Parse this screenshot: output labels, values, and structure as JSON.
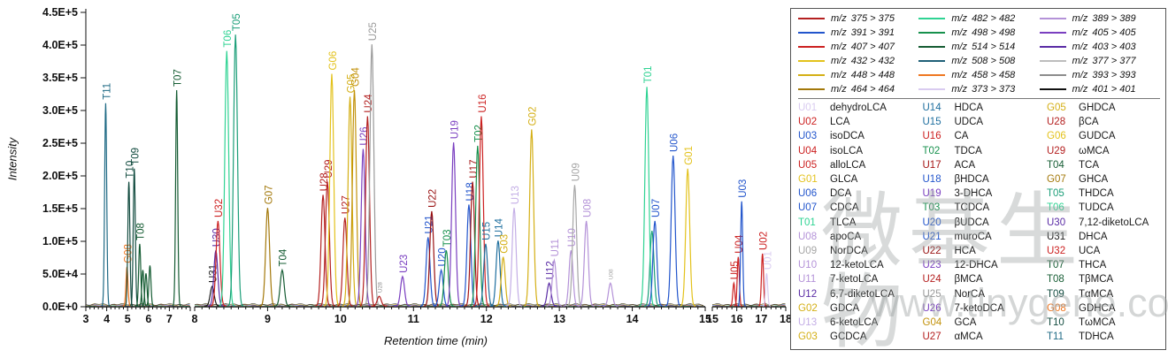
{
  "watermark": {
    "line1": "微基生物",
    "line2": "www.tinygene.com"
  },
  "chart_data": {
    "type": "line",
    "title": "",
    "xlabel": "Retention time (min)",
    "ylabel": "Intensity",
    "y_ticks": [
      "0.0E+0",
      "5.0E+4",
      "1.0E+5",
      "1.5E+5",
      "2.0E+5",
      "2.5E+5",
      "3.0E+5",
      "3.5E+5",
      "4.0E+5",
      "4.5E+5"
    ],
    "y_max_e5": 4.5,
    "x_segments": [
      {
        "start": 3,
        "end": 8,
        "ticks": [
          3,
          4,
          5,
          6,
          7
        ],
        "minor_step": 0.2
      },
      {
        "start": 8,
        "end": 15,
        "ticks": [
          8,
          9,
          10,
          11,
          12,
          13,
          14,
          15
        ],
        "minor_step": 0.1
      },
      {
        "start": 15,
        "end": 18,
        "ticks": [
          15,
          16,
          17,
          18
        ],
        "minor_step": 0.2
      }
    ],
    "peaks": [
      {
        "label": "T11",
        "rt": 3.95,
        "intensity_e5": 3.1,
        "color": "#1f6a85"
      },
      {
        "label": "G08",
        "rt": 4.97,
        "intensity_e5": 0.6,
        "color": "#ee7722"
      },
      {
        "label": "T10",
        "rt": 5.06,
        "intensity_e5": 1.9,
        "color": "#134c40"
      },
      {
        "label": "T09",
        "rt": 5.32,
        "intensity_e5": 2.1,
        "color": "#134c40"
      },
      {
        "label": "T08",
        "rt": 5.58,
        "intensity_e5": 0.95,
        "color": "#155c33"
      },
      {
        "label": "T07",
        "rt": 7.35,
        "intensity_e5": 3.3,
        "color": "#155c33"
      },
      {
        "label": "U31",
        "rt": 8.24,
        "intensity_e5": 0.3,
        "color": "#1a1a1a"
      },
      {
        "label": "U30",
        "rt": 8.29,
        "intensity_e5": 0.85,
        "color": "#5a2ca5"
      },
      {
        "label": "U32",
        "rt": 8.32,
        "intensity_e5": 1.3,
        "color": "#cc2020"
      },
      {
        "label": "T06",
        "rt": 8.44,
        "intensity_e5": 3.9,
        "color": "#2fd393"
      },
      {
        "label": "T05",
        "rt": 8.56,
        "intensity_e5": 4.15,
        "color": "#1b9e78"
      },
      {
        "label": "G07",
        "rt": 9.0,
        "intensity_e5": 1.5,
        "color": "#a3780a"
      },
      {
        "label": "T04",
        "rt": 9.2,
        "intensity_e5": 0.55,
        "color": "#155c33"
      },
      {
        "label": "U28",
        "rt": 9.76,
        "intensity_e5": 1.7,
        "color": "#b42020"
      },
      {
        "label": "U29",
        "rt": 9.82,
        "intensity_e5": 1.9,
        "color": "#b42020"
      },
      {
        "label": "G06",
        "rt": 9.88,
        "intensity_e5": 3.55,
        "color": "#e3c21c"
      },
      {
        "label": "U27",
        "rt": 10.06,
        "intensity_e5": 1.35,
        "color": "#b42020"
      },
      {
        "label": "G05",
        "rt": 10.13,
        "intensity_e5": 3.2,
        "color": "#d4af15"
      },
      {
        "label": "G04",
        "rt": 10.19,
        "intensity_e5": 3.3,
        "color": "#c2920c"
      },
      {
        "label": "U26",
        "rt": 10.31,
        "intensity_e5": 2.4,
        "color": "#7a3fc0"
      },
      {
        "label": "U24",
        "rt": 10.37,
        "intensity_e5": 2.9,
        "color": "#b42020"
      },
      {
        "label": "U25",
        "rt": 10.43,
        "intensity_e5": 4.0,
        "color": "#9a9a9a"
      },
      {
        "label": "U23",
        "rt": 10.85,
        "intensity_e5": 0.45,
        "color": "#7a3fc0"
      },
      {
        "label": "U21",
        "rt": 11.2,
        "intensity_e5": 1.05,
        "color": "#2255cc"
      },
      {
        "label": "U22",
        "rt": 11.25,
        "intensity_e5": 1.45,
        "color": "#991111"
      },
      {
        "label": "U20",
        "rt": 11.38,
        "intensity_e5": 0.55,
        "color": "#2255cc"
      },
      {
        "label": "T03",
        "rt": 11.45,
        "intensity_e5": 0.85,
        "color": "#17914d"
      },
      {
        "label": "U19",
        "rt": 11.55,
        "intensity_e5": 2.5,
        "color": "#7a3fc0"
      },
      {
        "label": "U18",
        "rt": 11.76,
        "intensity_e5": 1.55,
        "color": "#2255cc"
      },
      {
        "label": "U17",
        "rt": 11.81,
        "intensity_e5": 1.9,
        "color": "#a51515"
      },
      {
        "label": "T02",
        "rt": 11.88,
        "intensity_e5": 2.45,
        "color": "#17914d"
      },
      {
        "label": "U16",
        "rt": 11.93,
        "intensity_e5": 2.9,
        "color": "#cc2020"
      },
      {
        "label": "U15",
        "rt": 11.99,
        "intensity_e5": 0.95,
        "color": "#1f6f9f"
      },
      {
        "label": "U14",
        "rt": 12.16,
        "intensity_e5": 1.0,
        "color": "#1f6f9f"
      },
      {
        "label": "G03",
        "rt": 12.23,
        "intensity_e5": 0.75,
        "color": "#d4af15"
      },
      {
        "label": "U13",
        "rt": 12.38,
        "intensity_e5": 1.5,
        "color": "#c4aee6"
      },
      {
        "label": "G02",
        "rt": 12.62,
        "intensity_e5": 2.7,
        "color": "#d4af15"
      },
      {
        "label": "U12",
        "rt": 12.86,
        "intensity_e5": 0.35,
        "color": "#5a2ca5"
      },
      {
        "label": "U11",
        "rt": 12.93,
        "intensity_e5": 0.7,
        "color": "#b492d8"
      },
      {
        "label": "U10",
        "rt": 13.16,
        "intensity_e5": 0.85,
        "color": "#b492d8"
      },
      {
        "label": "U09",
        "rt": 13.21,
        "intensity_e5": 1.85,
        "color": "#a6a6a6"
      },
      {
        "label": "U08",
        "rt": 13.37,
        "intensity_e5": 1.3,
        "color": "#b492d8"
      },
      {
        "label": "T01",
        "rt": 14.2,
        "intensity_e5": 3.35,
        "color": "#2fd393"
      },
      {
        "label": "U07",
        "rt": 14.31,
        "intensity_e5": 1.3,
        "color": "#2255cc"
      },
      {
        "label": "U06",
        "rt": 14.56,
        "intensity_e5": 2.3,
        "color": "#2255cc"
      },
      {
        "label": "G01",
        "rt": 14.76,
        "intensity_e5": 2.1,
        "color": "#e3c21c"
      },
      {
        "label": "U05",
        "rt": 15.88,
        "intensity_e5": 0.35,
        "color": "#cc2020"
      },
      {
        "label": "U04",
        "rt": 16.06,
        "intensity_e5": 0.75,
        "color": "#cc2020"
      },
      {
        "label": "U03",
        "rt": 16.2,
        "intensity_e5": 1.6,
        "color": "#2255cc"
      },
      {
        "label": "U02",
        "rt": 17.05,
        "intensity_e5": 0.8,
        "color": "#cc2020"
      },
      {
        "label": "U01",
        "rt": 17.22,
        "intensity_e5": 0.5,
        "color": "#d9cbf0"
      }
    ],
    "small_labeled_peaks": [
      {
        "label": "U28",
        "rt": 10.53,
        "intensity_e5": 0.15,
        "color": "#b42020",
        "label_color": "#8c8c8c"
      },
      {
        "label": "U08",
        "rt": 13.7,
        "intensity_e5": 0.35,
        "color": "#b492d8",
        "label_color": "#a6a6a6"
      }
    ],
    "minor_peaks": [
      {
        "rt": 5.73,
        "intensity_e5": 0.55,
        "color": "#155c33"
      },
      {
        "rt": 5.88,
        "intensity_e5": 0.5,
        "color": "#155c33"
      },
      {
        "rt": 6.07,
        "intensity_e5": 0.62,
        "color": "#155c33"
      },
      {
        "rt": 14.27,
        "intensity_e5": 1.15,
        "color": "#1b9e78"
      }
    ]
  },
  "legend": {
    "mz_prefix": "m/z",
    "mz_columns": [
      [
        {
          "value": "375 > 375",
          "color": "#b42020"
        },
        {
          "value": "391 > 391",
          "color": "#2255cc"
        },
        {
          "value": "407 > 407",
          "color": "#cc2020"
        },
        {
          "value": "432 > 432",
          "color": "#e3c21c"
        },
        {
          "value": "448 > 448",
          "color": "#d4af15"
        },
        {
          "value": "464 > 464",
          "color": "#a3780a"
        }
      ],
      [
        {
          "value": "482 > 482",
          "color": "#2fd393"
        },
        {
          "value": "498 > 498",
          "color": "#17914d"
        },
        {
          "value": "514 > 514",
          "color": "#155c33"
        },
        {
          "value": "508 > 508",
          "color": "#1f6078"
        },
        {
          "value": "458 > 458",
          "color": "#ee7722"
        },
        {
          "value": "373 > 373",
          "color": "#d9cbf0"
        }
      ],
      [
        {
          "value": "389 > 389",
          "color": "#b492d8"
        },
        {
          "value": "405 > 405",
          "color": "#7a3fc0"
        },
        {
          "value": "403 > 403",
          "color": "#5a2ca5"
        },
        {
          "value": "377 > 377",
          "color": "#bdbdbd"
        },
        {
          "value": "393 > 393",
          "color": "#8c8c8c"
        },
        {
          "value": "401 > 401",
          "color": "#111111"
        }
      ]
    ],
    "compound_columns": [
      [
        {
          "code": "U01",
          "name": "dehydroLCA",
          "color": "#d9cbf0"
        },
        {
          "code": "U02",
          "name": "LCA",
          "color": "#cc2020"
        },
        {
          "code": "U03",
          "name": "isoDCA",
          "color": "#2255cc"
        },
        {
          "code": "U04",
          "name": "isoLCA",
          "color": "#cc2020"
        },
        {
          "code": "U05",
          "name": "alloLCA",
          "color": "#cc2020"
        },
        {
          "code": "G01",
          "name": "GLCA",
          "color": "#e3c21c"
        },
        {
          "code": "U06",
          "name": "DCA",
          "color": "#2255cc"
        },
        {
          "code": "U07",
          "name": "CDCA",
          "color": "#2255cc"
        },
        {
          "code": "T01",
          "name": "TLCA",
          "color": "#2fd393"
        },
        {
          "code": "U08",
          "name": "apoCA",
          "color": "#b492d8"
        },
        {
          "code": "U09",
          "name": "NorDCA",
          "color": "#a6a6a6"
        },
        {
          "code": "U10",
          "name": "12-ketoLCA",
          "color": "#b492d8"
        },
        {
          "code": "U11",
          "name": "7-ketoLCA",
          "color": "#b492d8"
        },
        {
          "code": "U12",
          "name": "6,7-diketoLCA",
          "color": "#5a2ca5"
        },
        {
          "code": "G02",
          "name": "GDCA",
          "color": "#d4af15"
        },
        {
          "code": "U13",
          "name": "6-ketoLCA",
          "color": "#c4aee6"
        },
        {
          "code": "G03",
          "name": "GCDCA",
          "color": "#d4af15"
        }
      ],
      [
        {
          "code": "U14",
          "name": "HDCA",
          "color": "#1f6f9f"
        },
        {
          "code": "U15",
          "name": "UDCA",
          "color": "#1f6f9f"
        },
        {
          "code": "U16",
          "name": "CA",
          "color": "#cc2020"
        },
        {
          "code": "T02",
          "name": "TDCA",
          "color": "#17914d"
        },
        {
          "code": "U17",
          "name": "ACA",
          "color": "#a51515"
        },
        {
          "code": "U18",
          "name": "βHDCA",
          "color": "#2255cc"
        },
        {
          "code": "U19",
          "name": "3-DHCA",
          "color": "#7a3fc0"
        },
        {
          "code": "T03",
          "name": "TCDCA",
          "color": "#17914d"
        },
        {
          "code": "U20",
          "name": "βUDCA",
          "color": "#2255cc"
        },
        {
          "code": "U21",
          "name": "muroCA",
          "color": "#2255cc"
        },
        {
          "code": "U22",
          "name": "HCA",
          "color": "#991111"
        },
        {
          "code": "U23",
          "name": "12-DHCA",
          "color": "#7a3fc0"
        },
        {
          "code": "U24",
          "name": "βMCA",
          "color": "#b42020"
        },
        {
          "code": "U25",
          "name": "NorCA",
          "color": "#9a9a9a"
        },
        {
          "code": "U26",
          "name": "7-ketoDCA",
          "color": "#7a3fc0"
        },
        {
          "code": "G04",
          "name": "GCA",
          "color": "#c2920c"
        },
        {
          "code": "U27",
          "name": "αMCA",
          "color": "#b42020"
        }
      ],
      [
        {
          "code": "G05",
          "name": "GHDCA",
          "color": "#d4af15"
        },
        {
          "code": "U28",
          "name": "βCA",
          "color": "#b42020"
        },
        {
          "code": "G06",
          "name": "GUDCA",
          "color": "#e3c21c"
        },
        {
          "code": "U29",
          "name": "ωMCA",
          "color": "#b42020"
        },
        {
          "code": "T04",
          "name": "TCA",
          "color": "#155c33"
        },
        {
          "code": "G07",
          "name": "GHCA",
          "color": "#a3780a"
        },
        {
          "code": "T05",
          "name": "THDCA",
          "color": "#1b9e78"
        },
        {
          "code": "T06",
          "name": "TUDCA",
          "color": "#2fd393"
        },
        {
          "code": "U30",
          "name": "7,12-diketoLCA",
          "color": "#5a2ca5"
        },
        {
          "code": "U31",
          "name": "DHCA",
          "color": "#1a1a1a"
        },
        {
          "code": "U32",
          "name": "UCA",
          "color": "#cc2020"
        },
        {
          "code": "T07",
          "name": "THCA",
          "color": "#155c33"
        },
        {
          "code": "T08",
          "name": "TβMCA",
          "color": "#155c33"
        },
        {
          "code": "T09",
          "name": "TαMCA",
          "color": "#134c40"
        },
        {
          "code": "G08",
          "name": "GDHCA",
          "color": "#ee7722"
        },
        {
          "code": "T10",
          "name": "TωMCA",
          "color": "#134c40"
        },
        {
          "code": "T11",
          "name": "TDHCA",
          "color": "#1f6a85"
        }
      ]
    ]
  }
}
